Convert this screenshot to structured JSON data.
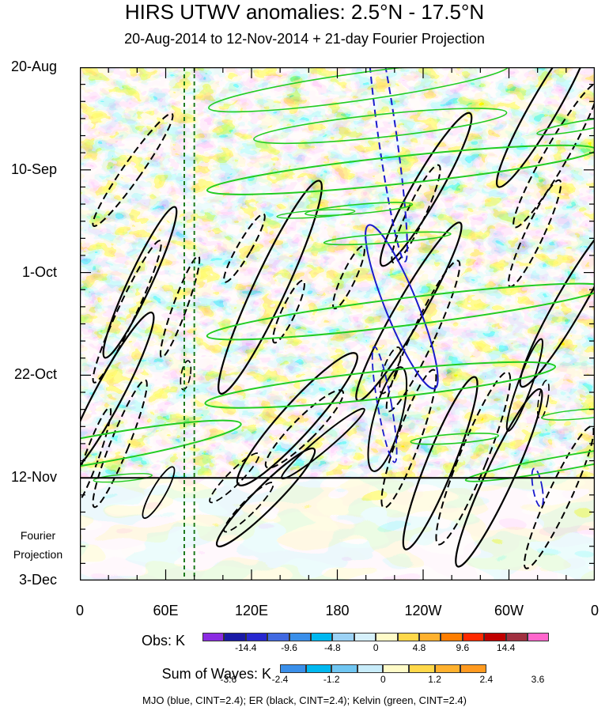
{
  "chart_data": {
    "type": "heatmap",
    "title": "HIRS UTWV anomalies: 2.5°N - 17.5°N",
    "subtitle": "20-Aug-2014 to 12-Nov-2014 + 21-day Fourier Projection",
    "x_ticks": [
      "0",
      "60E",
      "120E",
      "180",
      "120W",
      "60W",
      "0"
    ],
    "x_tick_values": [
      0,
      60,
      120,
      180,
      240,
      300,
      360
    ],
    "x_range": [
      0,
      360
    ],
    "y_ticks": [
      "20-Aug",
      "10-Sep",
      "1-Oct",
      "22-Oct",
      "12-Nov",
      "3-Dec"
    ],
    "y_tick_days": [
      0,
      21,
      42,
      63,
      84,
      105
    ],
    "y_range_days": [
      0,
      105
    ],
    "observation_end_label": "12-Nov",
    "observation_end_day": 84,
    "projection_label": [
      "Fourier",
      "Projection"
    ],
    "reference_longitudes": [
      73,
      80
    ],
    "obs_colorbar": {
      "title": "Obs: K",
      "labels": [
        "-14.4",
        "-9.6",
        "-4.8",
        "0",
        "4.8",
        "9.6",
        "14.4"
      ],
      "colors": [
        "#8b2be2",
        "#1a1aa6",
        "#2828d0",
        "#4169e1",
        "#3a8fea",
        "#00b8f0",
        "#9cd2f5",
        "#d6f0fb",
        "#fffbc8",
        "#ffd84a",
        "#ffb12e",
        "#ff7e00",
        "#ff2a00",
        "#c00000",
        "#a03040",
        "#ff66cc"
      ]
    },
    "wave_colorbar": {
      "title": "Sum of Waves: K",
      "labels": [
        "-3.6",
        "-2.4",
        "-1.2",
        "0",
        "1.2",
        "2.4",
        "3.6"
      ],
      "colors": [
        "#3a8fea",
        "#00b8f0",
        "#6fc6f2",
        "#c8ecfa",
        "#fffbc8",
        "#ffd84a",
        "#ffb12e",
        "#ff9a20"
      ]
    },
    "legend": "MJO (blue, CINT=2.4); ER (black, CINT=2.4); Kelvin (green, CINT=2.4)",
    "contour_colors": {
      "mjo": "#1a1acc",
      "er": "#000000",
      "kelvin": "#22cc22"
    }
  }
}
